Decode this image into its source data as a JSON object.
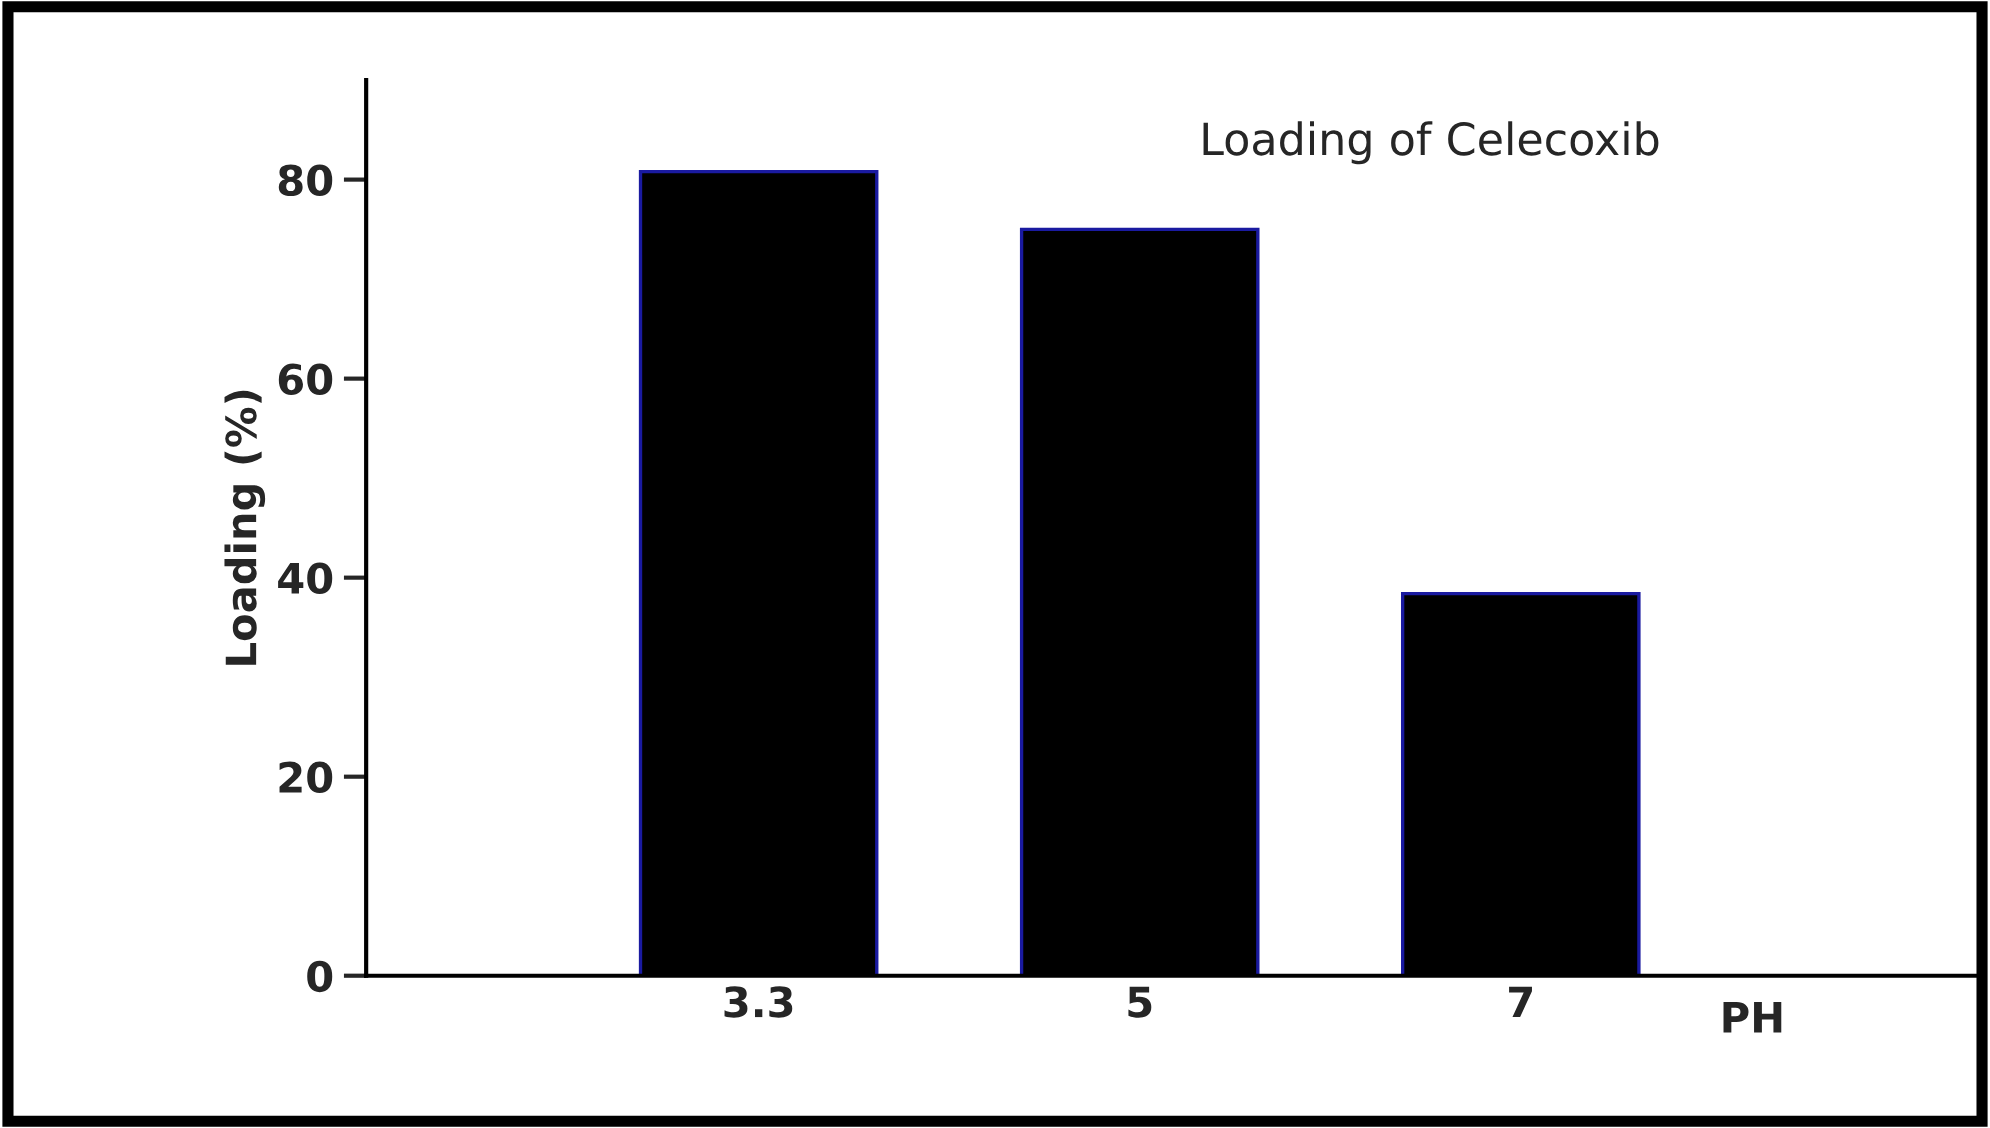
{
  "chart_data": {
    "type": "bar",
    "title": "Loading of Celecoxib",
    "xlabel": "PH",
    "ylabel": "Loading (%)",
    "categories": [
      "3.3",
      "5",
      "7"
    ],
    "series": [
      {
        "color": "#000000",
        "values": [
          80.8,
          75,
          38.4
        ]
      }
    ],
    "ylim": [
      0,
      90
    ],
    "yticks": [
      0,
      20,
      40,
      60,
      80
    ],
    "grid": false,
    "legend": false
  }
}
